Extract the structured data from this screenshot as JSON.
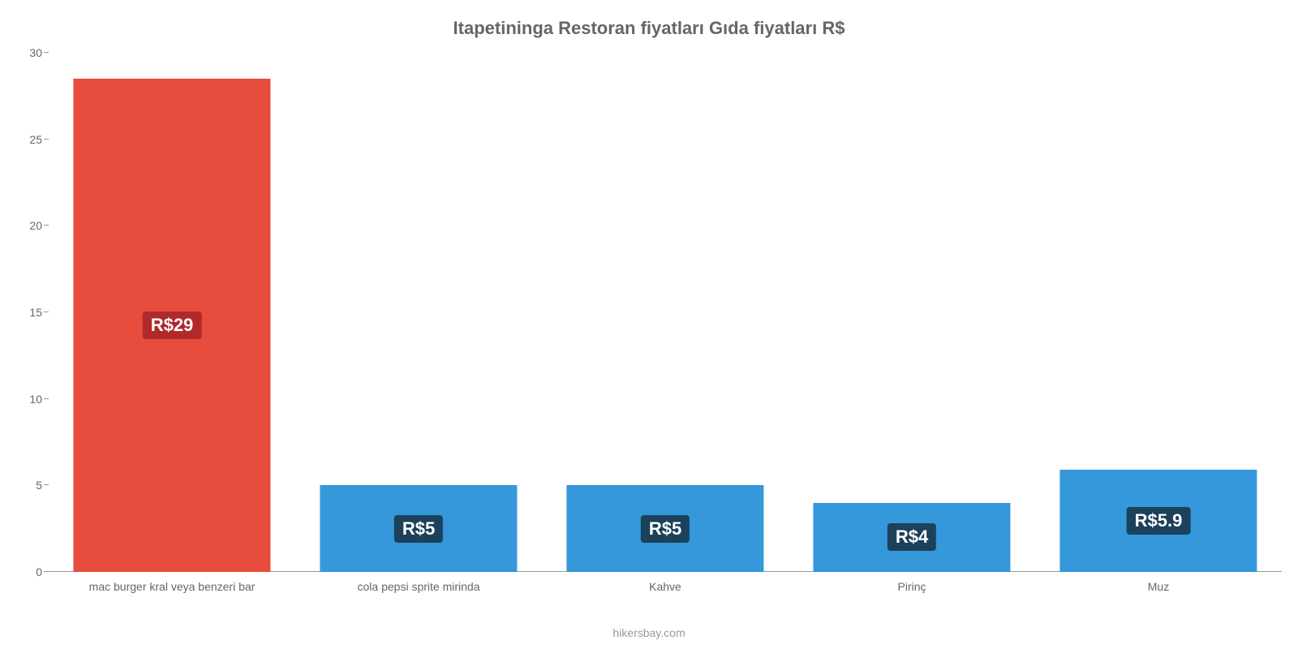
{
  "chart": {
    "type": "bar",
    "title": "Itapetininga Restoran fiyatları Gıda fiyatları R$",
    "title_fontsize": 22,
    "title_color": "#666666",
    "background_color": "#ffffff",
    "axis_color": "#999999",
    "tick_label_color": "#666666",
    "tick_fontsize": 14,
    "category_label_fontsize": 14,
    "attribution": "hikersbay.com",
    "attribution_color": "#999999",
    "ylim_min": 0,
    "ylim_max": 30,
    "ytick_step": 5,
    "yticks": [
      0,
      5,
      10,
      15,
      20,
      25,
      30
    ],
    "bar_width_ratio": 0.8,
    "value_label_fontsize": 22,
    "value_label_text_color": "#ffffff",
    "value_label_bg_red": "#b02a2a",
    "value_label_bg_blue": "#1c415a",
    "bars": [
      {
        "category": "mac burger kral veya benzeri bar",
        "value": 28.5,
        "value_label": "R$29",
        "color": "#e74c3c",
        "label_bg": "#b02a2a"
      },
      {
        "category": "cola pepsi sprite mirinda",
        "value": 5,
        "value_label": "R$5",
        "color": "#3498db",
        "label_bg": "#1c415a"
      },
      {
        "category": "Kahve",
        "value": 5,
        "value_label": "R$5",
        "color": "#3498db",
        "label_bg": "#1c415a"
      },
      {
        "category": "Pirinç",
        "value": 4,
        "value_label": "R$4",
        "color": "#3498db",
        "label_bg": "#1c415a"
      },
      {
        "category": "Muz",
        "value": 5.9,
        "value_label": "R$5.9",
        "color": "#3498db",
        "label_bg": "#1c415a"
      }
    ]
  }
}
